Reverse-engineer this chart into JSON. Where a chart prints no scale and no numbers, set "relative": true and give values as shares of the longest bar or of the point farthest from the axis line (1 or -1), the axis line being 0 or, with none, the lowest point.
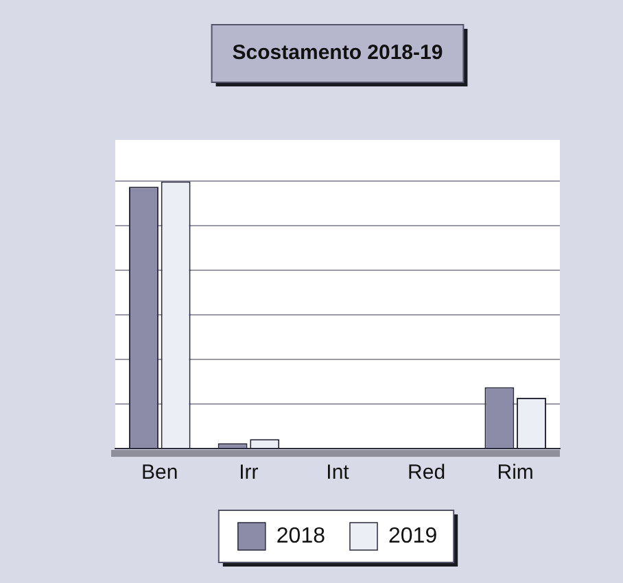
{
  "chart_data": {
    "type": "bar",
    "title": "Scostamento 2018-19",
    "categories": [
      "Ben",
      "Irr",
      "Int",
      "Red",
      "Rim"
    ],
    "series": [
      {
        "name": "2018",
        "color": "#8c8ca8",
        "values": [
          0.98,
          0.02,
          0,
          0,
          0.23
        ]
      },
      {
        "name": "2019",
        "color": "#eceef6",
        "values": [
          1,
          0.035,
          0,
          0,
          0.19
        ]
      }
    ],
    "relative": true,
    "grid": "y",
    "legend": "bottom"
  }
}
